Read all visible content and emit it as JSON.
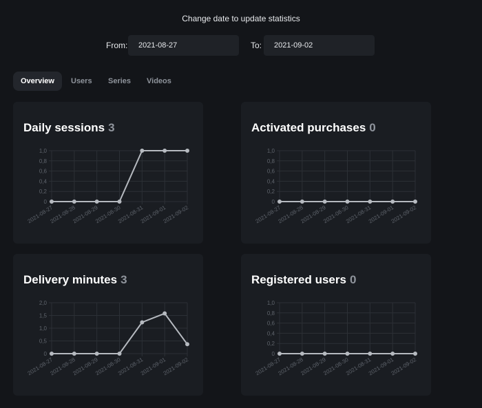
{
  "header": {
    "hint": "Change date to update statistics",
    "from_label": "From:",
    "from_value": "2021-08-27",
    "to_label": "To:",
    "to_value": "2021-09-02"
  },
  "tabs": [
    {
      "label": "Overview",
      "active": true
    },
    {
      "label": "Users",
      "active": false
    },
    {
      "label": "Series",
      "active": false
    },
    {
      "label": "Videos",
      "active": false
    }
  ],
  "colors": {
    "background": "#131519",
    "card": "#1a1d22",
    "line": "#b6bac0",
    "grid": "#2c3036",
    "muted_text": "#8f949c"
  },
  "chart_data": [
    {
      "type": "line",
      "title": "Daily sessions",
      "count": "3",
      "categories": [
        "2021-08-27",
        "2021-08-28",
        "2021-08-29",
        "2021-08-30",
        "2021-08-31",
        "2021-09-01",
        "2021-09-02"
      ],
      "values": [
        0,
        0,
        0,
        0,
        1,
        1,
        1
      ],
      "yticks": [
        "0",
        "0,2",
        "0,4",
        "0,6",
        "0,8",
        "1,0"
      ],
      "ylim": [
        0,
        1
      ],
      "grid": true
    },
    {
      "type": "line",
      "title": "Activated purchases",
      "count": "0",
      "categories": [
        "2021-08-27",
        "2021-08-28",
        "2021-08-29",
        "2021-08-30",
        "2021-08-31",
        "2021-09-01",
        "2021-09-02"
      ],
      "values": [
        0,
        0,
        0,
        0,
        0,
        0,
        0
      ],
      "yticks": [
        "0",
        "0,2",
        "0,4",
        "0,6",
        "0,8",
        "1,0"
      ],
      "ylim": [
        0,
        1
      ],
      "grid": true
    },
    {
      "type": "line",
      "title": "Delivery minutes",
      "count": "3",
      "categories": [
        "2021-08-27",
        "2021-08-28",
        "2021-08-29",
        "2021-08-30",
        "2021-08-31",
        "2021-09-01",
        "2021-09-02"
      ],
      "values": [
        0,
        0,
        0,
        0,
        1.23,
        1.58,
        0.37
      ],
      "yticks": [
        "0",
        "0,5",
        "1,0",
        "1,5",
        "2,0"
      ],
      "ylim": [
        0,
        2
      ],
      "grid": true
    },
    {
      "type": "line",
      "title": "Registered users",
      "count": "0",
      "categories": [
        "2021-08-27",
        "2021-08-28",
        "2021-08-29",
        "2021-08-30",
        "2021-08-31",
        "2021-09-01",
        "2021-09-02"
      ],
      "values": [
        0,
        0,
        0,
        0,
        0,
        0,
        0
      ],
      "yticks": [
        "0",
        "0,2",
        "0,4",
        "0,6",
        "0,8",
        "1,0"
      ],
      "ylim": [
        0,
        1
      ],
      "grid": true
    }
  ]
}
